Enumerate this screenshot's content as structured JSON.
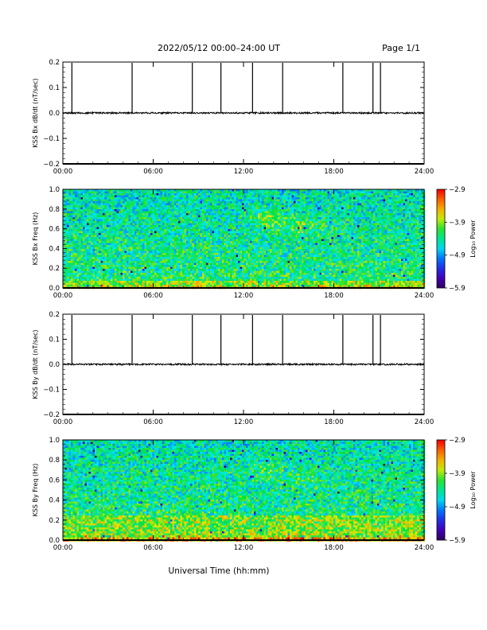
{
  "header": {
    "title": "2022/05/12  00:00–24:00 UT",
    "page": "Page 1/1"
  },
  "xlabel": "Universal Time (hh:mm)",
  "chart_data": [
    {
      "type": "line",
      "ylabel": "KSS Bx dB/dt (nT/sec)",
      "ylim": [
        -0.2,
        0.2
      ],
      "yticks": [
        0.2,
        0.1,
        0.0,
        -0.1,
        -0.2
      ],
      "ytick_labels": [
        "0.2",
        "0.1",
        "0.0",
        "−0.1",
        "−0.2"
      ],
      "xlim": [
        0,
        24
      ],
      "xticks": [
        0,
        6,
        12,
        18,
        24
      ],
      "xtick_labels": [
        "00:00",
        "06:00",
        "12:00",
        "18:00",
        "24:00"
      ],
      "baseline": 0.0,
      "spike_times_h": [
        0.6,
        4.6,
        8.6,
        10.5,
        12.6,
        14.6,
        18.6,
        20.6,
        21.1
      ]
    },
    {
      "type": "heatmap",
      "ylabel": "KSS Bx Freq (Hz)",
      "ylim": [
        0.0,
        1.0
      ],
      "yticks": [
        1.0,
        0.8,
        0.6,
        0.4,
        0.2,
        0.0
      ],
      "ytick_labels": [
        "1.0",
        "0.8",
        "0.6",
        "0.4",
        "0.2",
        "0.0"
      ],
      "xlim": [
        0,
        24
      ],
      "xticks": [
        0,
        6,
        12,
        18,
        24
      ],
      "xtick_labels": [
        "00:00",
        "06:00",
        "12:00",
        "18:00",
        "24:00"
      ],
      "colorbar": {
        "label": "Log₁₀ Power",
        "range": [
          -5.9,
          -2.9
        ],
        "ticks": [
          -2.9,
          -3.9,
          -4.9,
          -5.9
        ],
        "tick_labels": [
          "−2.9",
          "−3.9",
          "−4.9",
          "−5.9"
        ]
      }
    },
    {
      "type": "line",
      "ylabel": "KSS By dB/dt (nT/sec)",
      "ylim": [
        -0.2,
        0.2
      ],
      "yticks": [
        0.2,
        0.1,
        0.0,
        -0.1,
        -0.2
      ],
      "ytick_labels": [
        "0.2",
        "0.1",
        "0.0",
        "−0.1",
        "−0.2"
      ],
      "xlim": [
        0,
        24
      ],
      "xticks": [
        0,
        6,
        12,
        18,
        24
      ],
      "xtick_labels": [
        "00:00",
        "06:00",
        "12:00",
        "18:00",
        "24:00"
      ],
      "baseline": 0.0,
      "spike_times_h": [
        0.6,
        4.6,
        8.6,
        10.5,
        12.6,
        14.6,
        18.6,
        20.6,
        21.1
      ]
    },
    {
      "type": "heatmap",
      "ylabel": "KSS By Freq (Hz)",
      "ylim": [
        0.0,
        1.0
      ],
      "yticks": [
        1.0,
        0.8,
        0.6,
        0.4,
        0.2,
        0.0
      ],
      "ytick_labels": [
        "1.0",
        "0.8",
        "0.6",
        "0.4",
        "0.2",
        "0.0"
      ],
      "xlim": [
        0,
        24
      ],
      "xticks": [
        0,
        6,
        12,
        18,
        24
      ],
      "xtick_labels": [
        "00:00",
        "06:00",
        "12:00",
        "18:00",
        "24:00"
      ],
      "colorbar": {
        "label": "Log₁₀ Power",
        "range": [
          -5.9,
          -2.9
        ],
        "ticks": [
          -2.9,
          -3.9,
          -4.9,
          -5.9
        ],
        "tick_labels": [
          "−2.9",
          "−3.9",
          "−4.9",
          "−5.9"
        ]
      }
    }
  ]
}
